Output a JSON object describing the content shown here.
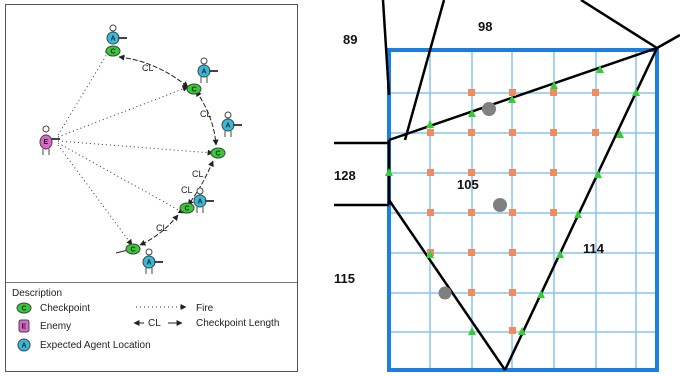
{
  "left_diagram": {
    "cl_labels": [
      "CL",
      "CL",
      "CL",
      "CL",
      "CL"
    ],
    "marker_letters": {
      "checkpoint": "C",
      "enemy": "E",
      "agent": "A"
    },
    "legend": {
      "title": "Description",
      "checkpoint": "Checkpoint",
      "enemy": "Enemy",
      "agent": "Expected Agent Location",
      "fire": "Fire",
      "cl": "CL",
      "checkpoint_length": "Checkpoint Length"
    },
    "colors": {
      "checkpoint": "#33cc33",
      "enemy": "#dd66cc",
      "agent": "#33bbdd"
    }
  },
  "right_diagram": {
    "region_labels": {
      "r89": "89",
      "r98": "98",
      "r128": "128",
      "r105": "105",
      "r115": "115",
      "r114": "114"
    },
    "colors": {
      "grid": "#88c4f0",
      "frame": "#1a7fe0",
      "node": "#f08c60",
      "triangle": "#33cc33",
      "circle": "#808080"
    }
  }
}
